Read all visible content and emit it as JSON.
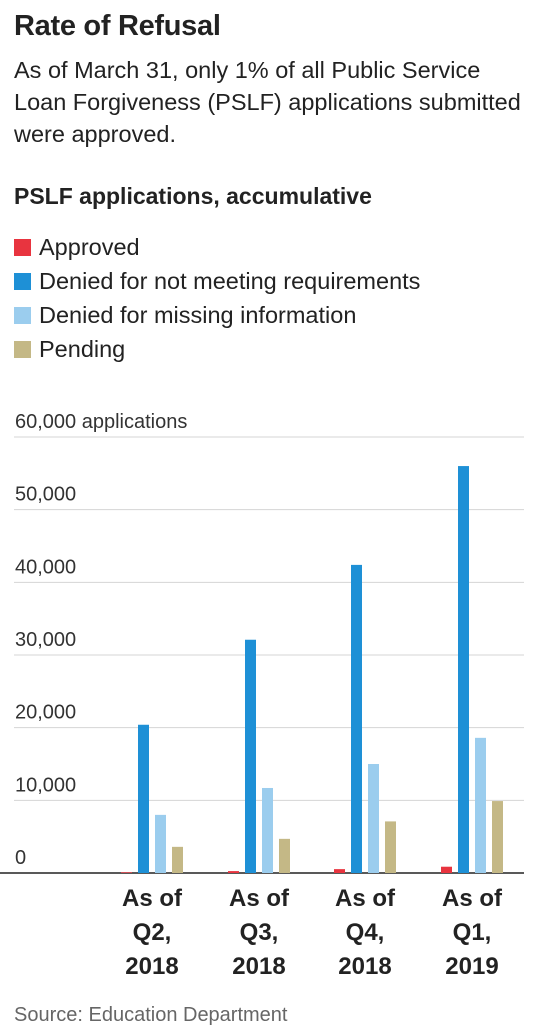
{
  "header": {
    "title": "Rate of Refusal",
    "subtitle": "As of March 31, only 1% of all Public Service Loan Forgiveness (PSLF) applications submitted were approved."
  },
  "source": "Source: Education Department",
  "chart_data": {
    "type": "bar",
    "title": "PSLF applications, accumulative",
    "ylabel": "applications",
    "ylim": [
      0,
      60000
    ],
    "yticks": [
      0,
      10000,
      20000,
      30000,
      40000,
      50000,
      60000
    ],
    "ytick_labels": [
      "0",
      "10,000",
      "20,000",
      "30,000",
      "40,000",
      "50,000",
      "60,000 applications"
    ],
    "categories": [
      [
        "As of",
        "Q2,",
        "2018"
      ],
      [
        "As of",
        "Q3,",
        "2018"
      ],
      [
        "As of",
        "Q4,",
        "2018"
      ],
      [
        "As of",
        "Q1,",
        "2019"
      ]
    ],
    "series": [
      {
        "name": "Approved",
        "color": "#e8343f",
        "values": [
          96,
          262,
          533,
          864
        ]
      },
      {
        "name": "Denied for not meeting requirements",
        "color": "#1e90d6",
        "values": [
          20400,
          32100,
          42400,
          56000
        ]
      },
      {
        "name": "Denied for missing information",
        "color": "#9bcdee",
        "values": [
          8000,
          11700,
          15000,
          18600
        ]
      },
      {
        "name": "Pending",
        "color": "#c4b886",
        "values": [
          3600,
          4700,
          7100,
          9900
        ]
      }
    ],
    "legend_position": "top-left",
    "grid": true
  }
}
